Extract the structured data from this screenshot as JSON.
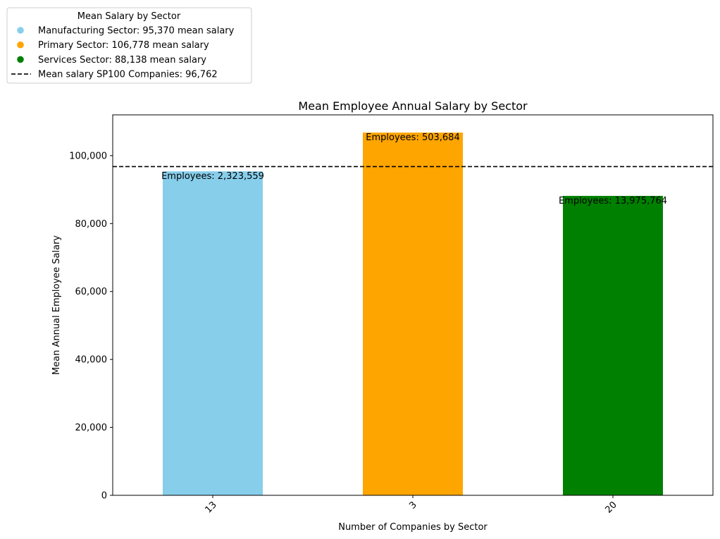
{
  "chart_data": {
    "type": "bar",
    "title": "Mean Employee Annual Salary by Sector",
    "xlabel": "Number of Companies by Sector",
    "ylabel": "Mean Annual Employee Salary",
    "ylim": [
      0,
      112000
    ],
    "yticks": [
      0,
      20000,
      40000,
      60000,
      80000,
      100000
    ],
    "ytick_labels": [
      "0",
      "20,000",
      "40,000",
      "60,000",
      "80,000",
      "100,000"
    ],
    "categories": [
      "13",
      "3",
      "20"
    ],
    "values": [
      95370,
      106778,
      88138
    ],
    "bar_labels": [
      "Employees: 2,323,559",
      "Employees: 503,684",
      "Employees: 13,975,764"
    ],
    "colors": [
      "#87ceeb",
      "#ffa500",
      "#008000"
    ],
    "reference_line": {
      "value": 96762,
      "color": "#000000",
      "style": "dashed"
    },
    "legend": {
      "title": "Mean Salary by Sector",
      "placement": "top-left, outside",
      "entries": [
        {
          "label": "Manufacturing Sector: 95,370 mean salary",
          "color": "#87ceeb",
          "marker": "circle"
        },
        {
          "label": "Primary Sector: 106,778 mean salary",
          "color": "#ffa500",
          "marker": "circle"
        },
        {
          "label": "Services Sector: 88,138 mean salary",
          "color": "#008000",
          "marker": "circle"
        },
        {
          "label": "Mean salary SP100 Companies: 96,762",
          "color": "#000000",
          "marker": "dashed-line"
        }
      ]
    },
    "grid": false
  }
}
